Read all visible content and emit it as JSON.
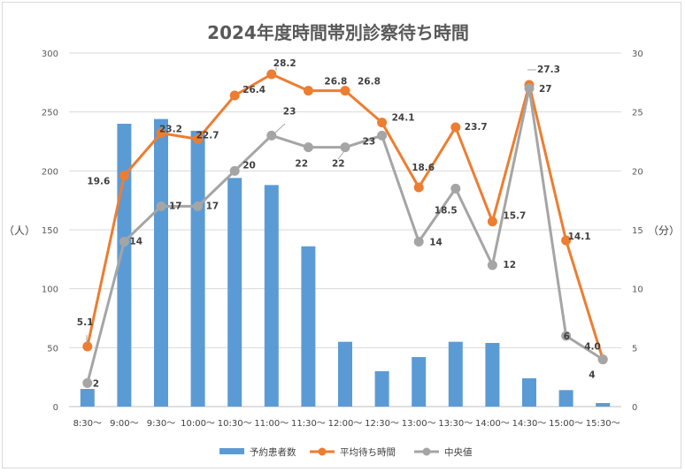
{
  "chart_data": {
    "type": "bar+line",
    "title": "2024年度時間帯別診察待ち時間",
    "categories": [
      "8:30～",
      "9:00～",
      "9:30～",
      "10:00～",
      "10:30～",
      "11:00～",
      "11:30～",
      "12:00～",
      "12:30～",
      "13:00～",
      "13:30～",
      "14:00～",
      "14:30～",
      "15:00～",
      "15:30～"
    ],
    "left_axis": {
      "label": "（人）",
      "ylim": [
        0,
        300
      ],
      "ticks": [
        0,
        50,
        100,
        150,
        200,
        250,
        300
      ]
    },
    "right_axis": {
      "label": "（分）",
      "ylim": [
        0,
        30
      ],
      "ticks": [
        0,
        5,
        10,
        15,
        20,
        25,
        30
      ]
    },
    "series": [
      {
        "name": "予約患者数",
        "kind": "bar",
        "axis": "left",
        "color": "#5b9bd5",
        "values": [
          15,
          240,
          244,
          234,
          194,
          188,
          136,
          55,
          30,
          42,
          55,
          54,
          24,
          14,
          3
        ]
      },
      {
        "name": "平均待ち時間",
        "kind": "line",
        "axis": "right",
        "color": "#ed7d31",
        "values": [
          5.1,
          19.6,
          23.2,
          22.7,
          26.4,
          28.2,
          26.8,
          26.8,
          24.1,
          18.6,
          23.7,
          15.7,
          27.3,
          14.1,
          4.0
        ],
        "labels": [
          "5.1",
          "19.6",
          "23.2",
          "22.7",
          "26.4",
          "28.2",
          "26.8",
          "26.8",
          "24.1",
          "18.6",
          "23.7",
          "15.7",
          "27.3",
          "14.1",
          "4.0"
        ]
      },
      {
        "name": "中央値",
        "kind": "line",
        "axis": "right",
        "color": "#a5a5a5",
        "values": [
          2,
          14,
          17,
          17,
          20,
          23,
          22,
          22,
          23,
          14,
          18.5,
          12,
          27,
          6,
          4
        ],
        "labels": [
          "2",
          "14",
          "17",
          "17",
          "20",
          "23",
          "22",
          "22",
          "23",
          "14",
          "18.5",
          "12",
          "27",
          "6",
          "4"
        ]
      }
    ],
    "grid": true,
    "legend": "bottom"
  }
}
